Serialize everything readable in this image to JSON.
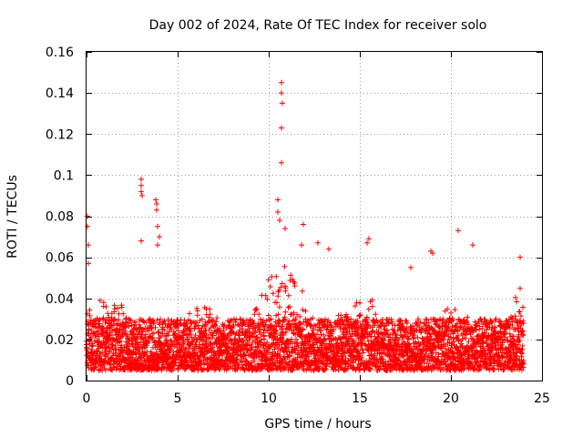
{
  "chart_data": {
    "type": "scatter",
    "title": "Day 002 of 2024, Rate Of TEC Index for receiver solo",
    "xlabel": "GPS time / hours",
    "ylabel": "ROTI / TECUs",
    "xlim": [
      0,
      25
    ],
    "ylim": [
      0,
      0.16
    ],
    "xticks": [
      0,
      5,
      10,
      15,
      20,
      25
    ],
    "xtick_labels": [
      "0",
      "5",
      "10",
      "15",
      "20",
      "25"
    ],
    "yticks": [
      0,
      0.02,
      0.04,
      0.06,
      0.08,
      0.1,
      0.12,
      0.14,
      0.16
    ],
    "ytick_labels": [
      "0",
      "0.02",
      "0.04",
      "0.06",
      "0.08",
      "0.1",
      "0.12",
      "0.14",
      "0.16"
    ],
    "grid": true,
    "marker": "+",
    "color": "#ff0000",
    "x_data_range": [
      0,
      24
    ],
    "dense_band": {
      "low": 0.005,
      "high": 0.03
    },
    "spread_max": 0.045,
    "outliers": [
      {
        "x": 0.05,
        "y": 0.08
      },
      {
        "x": 0.05,
        "y": 0.075
      },
      {
        "x": 0.1,
        "y": 0.066
      },
      {
        "x": 0.1,
        "y": 0.057
      },
      {
        "x": 3.0,
        "y": 0.098
      },
      {
        "x": 3.0,
        "y": 0.095
      },
      {
        "x": 3.0,
        "y": 0.092
      },
      {
        "x": 3.05,
        "y": 0.09
      },
      {
        "x": 3.0,
        "y": 0.068
      },
      {
        "x": 3.8,
        "y": 0.088
      },
      {
        "x": 3.85,
        "y": 0.086
      },
      {
        "x": 3.85,
        "y": 0.083
      },
      {
        "x": 3.9,
        "y": 0.075
      },
      {
        "x": 4.0,
        "y": 0.07
      },
      {
        "x": 3.9,
        "y": 0.066
      },
      {
        "x": 10.7,
        "y": 0.145
      },
      {
        "x": 10.7,
        "y": 0.14
      },
      {
        "x": 10.75,
        "y": 0.135
      },
      {
        "x": 10.7,
        "y": 0.123
      },
      {
        "x": 10.7,
        "y": 0.106
      },
      {
        "x": 10.5,
        "y": 0.088
      },
      {
        "x": 10.5,
        "y": 0.082
      },
      {
        "x": 10.6,
        "y": 0.078
      },
      {
        "x": 10.9,
        "y": 0.074
      },
      {
        "x": 11.9,
        "y": 0.076
      },
      {
        "x": 11.8,
        "y": 0.066
      },
      {
        "x": 12.7,
        "y": 0.067
      },
      {
        "x": 13.3,
        "y": 0.064
      },
      {
        "x": 15.4,
        "y": 0.067
      },
      {
        "x": 15.5,
        "y": 0.069
      },
      {
        "x": 17.8,
        "y": 0.055
      },
      {
        "x": 18.9,
        "y": 0.063
      },
      {
        "x": 19.0,
        "y": 0.062
      },
      {
        "x": 20.4,
        "y": 0.073
      },
      {
        "x": 21.2,
        "y": 0.066
      },
      {
        "x": 23.8,
        "y": 0.06
      }
    ]
  }
}
